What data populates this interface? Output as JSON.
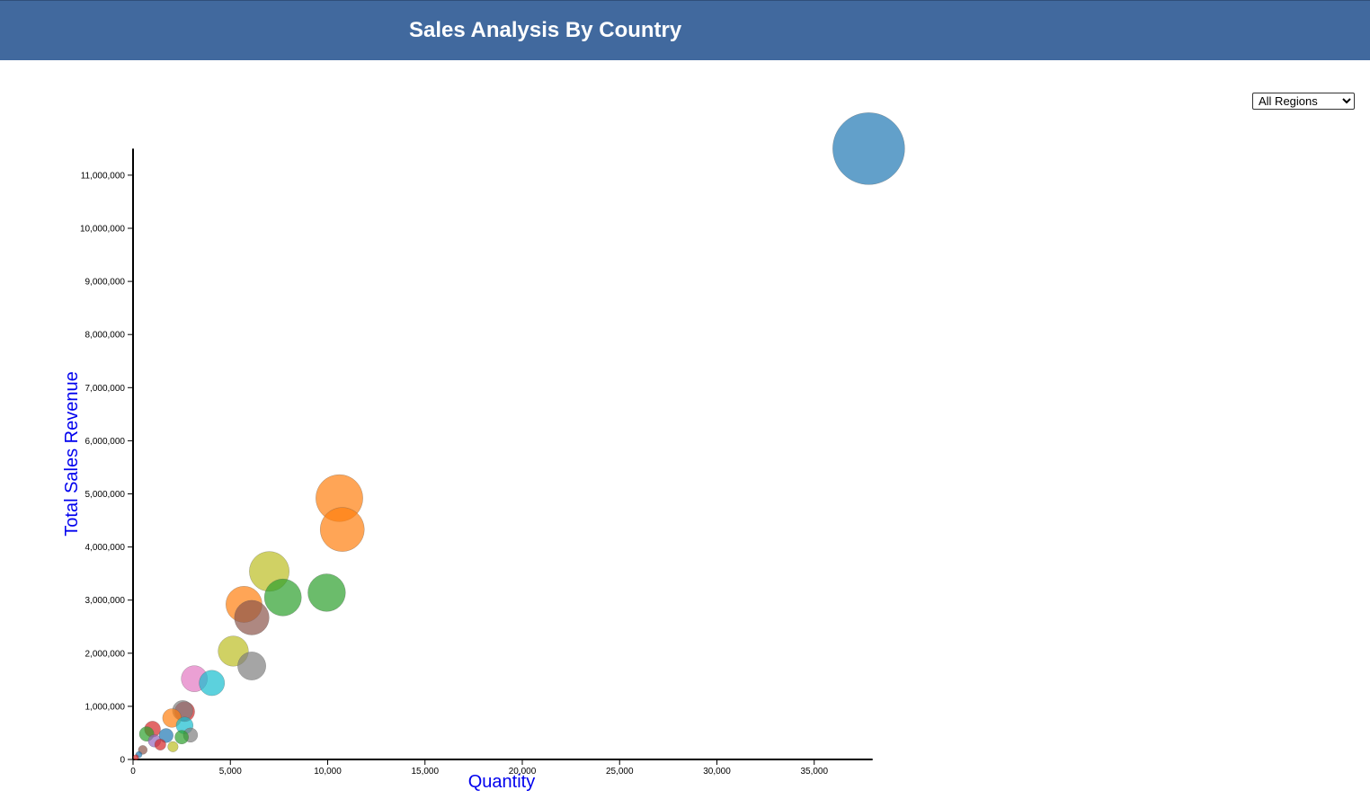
{
  "header": {
    "title": "Sales Analysis By Country",
    "background_color": "#41699e"
  },
  "region_filter": {
    "selected": "All Regions",
    "options": [
      "All Regions"
    ]
  },
  "chart_data": {
    "type": "scatter",
    "title": "Sales Analysis By Country",
    "xlabel": "Quantity",
    "ylabel": "Total Sales Revenue",
    "xlim": [
      0,
      38000
    ],
    "ylim": [
      0,
      11500000
    ],
    "x_ticks": [
      0,
      5000,
      10000,
      15000,
      20000,
      25000,
      30000,
      35000
    ],
    "x_tick_labels": [
      "0",
      "5,000",
      "10,000",
      "15,000",
      "20,000",
      "25,000",
      "30,000",
      "35,000"
    ],
    "y_ticks": [
      0,
      1000000,
      2000000,
      3000000,
      4000000,
      5000000,
      6000000,
      7000000,
      8000000,
      9000000,
      10000000,
      11000000
    ],
    "y_tick_labels": [
      "0",
      "1,000,000",
      "2,000,000",
      "3,000,000",
      "4,000,000",
      "5,000,000",
      "6,000,000",
      "7,000,000",
      "8,000,000",
      "9,000,000",
      "10,000,000",
      "11,000,000"
    ],
    "axis_title_color": "#0000ee",
    "grid": false,
    "legend": "none",
    "bubble_size_encodes": "Total Sales Revenue",
    "points": [
      {
        "x": 37800,
        "y": 11500000,
        "color": "#1f77b4"
      },
      {
        "x": 10600,
        "y": 4920000,
        "color": "#ff7f0e"
      },
      {
        "x": 10750,
        "y": 4330000,
        "color": "#ff7f0e"
      },
      {
        "x": 7000,
        "y": 3540000,
        "color": "#bcbd22"
      },
      {
        "x": 9950,
        "y": 3140000,
        "color": "#2ca02c"
      },
      {
        "x": 7700,
        "y": 3050000,
        "color": "#2ca02c"
      },
      {
        "x": 5700,
        "y": 2920000,
        "color": "#ff7f0e"
      },
      {
        "x": 6100,
        "y": 2670000,
        "color": "#8c564b"
      },
      {
        "x": 5150,
        "y": 2040000,
        "color": "#bcbd22"
      },
      {
        "x": 6100,
        "y": 1760000,
        "color": "#7f7f7f"
      },
      {
        "x": 3150,
        "y": 1520000,
        "color": "#e377c2"
      },
      {
        "x": 4050,
        "y": 1440000,
        "color": "#17becf"
      },
      {
        "x": 2650,
        "y": 900000,
        "color": "#d62728"
      },
      {
        "x": 2550,
        "y": 920000,
        "color": "#7f7f7f"
      },
      {
        "x": 2000,
        "y": 780000,
        "color": "#ff7f0e"
      },
      {
        "x": 2650,
        "y": 640000,
        "color": "#17becf"
      },
      {
        "x": 1000,
        "y": 570000,
        "color": "#d62728"
      },
      {
        "x": 700,
        "y": 480000,
        "color": "#2ca02c"
      },
      {
        "x": 1700,
        "y": 450000,
        "color": "#1f77b4"
      },
      {
        "x": 2950,
        "y": 460000,
        "color": "#7f7f7f"
      },
      {
        "x": 2500,
        "y": 420000,
        "color": "#2ca02c"
      },
      {
        "x": 1100,
        "y": 350000,
        "color": "#9467bd"
      },
      {
        "x": 1400,
        "y": 280000,
        "color": "#d62728"
      },
      {
        "x": 2050,
        "y": 240000,
        "color": "#bcbd22"
      },
      {
        "x": 500,
        "y": 180000,
        "color": "#8c564b"
      },
      {
        "x": 300,
        "y": 90000,
        "color": "#1f77b4"
      },
      {
        "x": 150,
        "y": 40000,
        "color": "#d62728"
      }
    ]
  }
}
